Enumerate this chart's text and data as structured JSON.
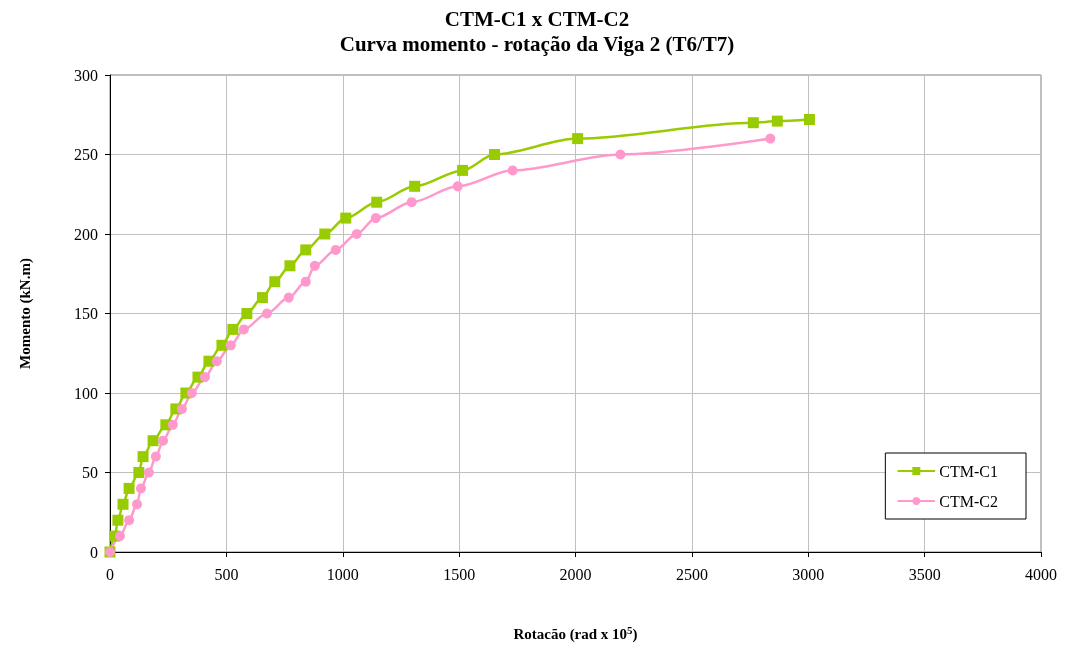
{
  "chart_data": {
    "type": "line",
    "title": "CTM-C1 x CTM-C2",
    "subtitle": "Curva momento - rotação da Viga 2 (T6/T7)",
    "xlabel": "Rotacão (rad x 10$^{5}$)",
    "ylabel": "Momento (kN.m)",
    "xlim": [
      0,
      4000
    ],
    "xticks": [
      0,
      500,
      1000,
      1500,
      2000,
      2500,
      3000,
      3500,
      4000
    ],
    "ylim": [
      0,
      300
    ],
    "yticks": [
      0,
      50,
      100,
      150,
      200,
      250,
      300
    ],
    "grid": true,
    "legend": "bottom right",
    "line_style": "solid",
    "series": [
      {
        "name": "CTM-C1",
        "color": "#99cc00",
        "marker": "square",
        "x": [
          0,
          21,
          34,
          56,
          82,
          124,
          142,
          185,
          240,
          283,
          326,
          378,
          425,
          481,
          528,
          588,
          655,
          708,
          773,
          841,
          923,
          1013,
          1146,
          1309,
          1515,
          1652,
          2009,
          2764,
          2867,
          3005
        ],
        "values": [
          0,
          10,
          20,
          30,
          40,
          50,
          60,
          70,
          80,
          90,
          100,
          110,
          120,
          130,
          140,
          150,
          160,
          170,
          180,
          190,
          200,
          210,
          220,
          230,
          240,
          250,
          260,
          270,
          271,
          272
        ]
      },
      {
        "name": "CTM-C2",
        "color": "#ff99cc",
        "marker": "circle",
        "x": [
          0,
          43,
          82,
          116,
          133,
          167,
          197,
          228,
          270,
          309,
          352,
          408,
          459,
          519,
          575,
          674,
          768,
          841,
          880,
          970,
          1060,
          1142,
          1296,
          1494,
          1730,
          2193,
          2837
        ],
        "values": [
          0,
          10,
          20,
          30,
          40,
          50,
          60,
          70,
          80,
          90,
          100,
          110,
          120,
          130,
          140,
          150,
          160,
          170,
          180,
          190,
          200,
          210,
          220,
          230,
          240,
          250,
          260
        ]
      }
    ]
  }
}
